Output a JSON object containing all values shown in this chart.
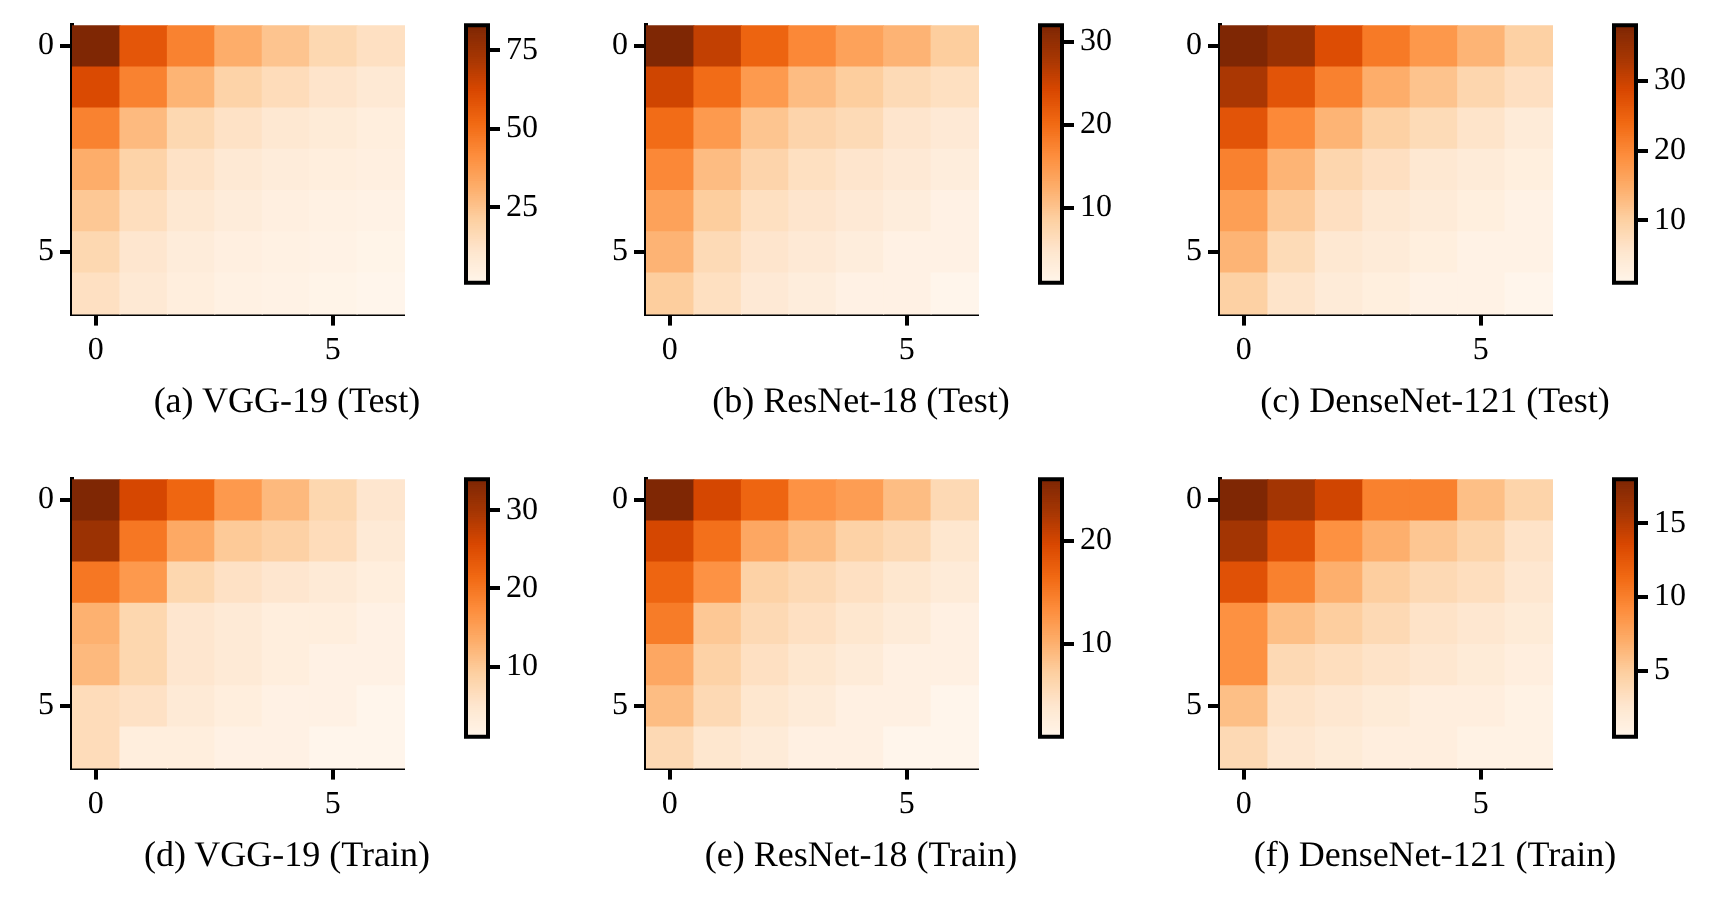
{
  "chart_data": [
    {
      "type": "heatmap",
      "title": "(a)  VGG-19 (Test)",
      "categories": [
        "0",
        null,
        null,
        null,
        null,
        "5",
        null
      ],
      "y_categories": [
        "0",
        null,
        null,
        null,
        null,
        "5",
        null
      ],
      "clim": [
        1,
        83
      ],
      "cticks": [
        25,
        50,
        75
      ],
      "cells": [
        [
          83,
          58,
          45,
          32,
          25,
          18,
          14
        ],
        [
          62,
          45,
          30,
          20,
          16,
          12,
          9
        ],
        [
          45,
          28,
          18,
          13,
          10,
          8,
          6
        ],
        [
          32,
          20,
          13,
          9,
          7,
          6,
          5
        ],
        [
          24,
          15,
          10,
          7,
          5,
          4,
          3
        ],
        [
          18,
          11,
          7,
          5,
          4,
          3,
          2
        ],
        [
          14,
          9,
          6,
          4,
          3,
          2,
          1
        ]
      ]
    },
    {
      "type": "heatmap",
      "title": "(b)  ResNet-18 (Test)",
      "categories": [
        "0",
        null,
        null,
        null,
        null,
        "5",
        null
      ],
      "y_categories": [
        "0",
        null,
        null,
        null,
        null,
        "5",
        null
      ],
      "clim": [
        1,
        32
      ],
      "cticks": [
        10,
        20,
        30
      ],
      "cells": [
        [
          32,
          26,
          21,
          17,
          14,
          12,
          9
        ],
        [
          25,
          20,
          15,
          11,
          9,
          7,
          6
        ],
        [
          20,
          15,
          10,
          8,
          7,
          5,
          4
        ],
        [
          17,
          11,
          8,
          6,
          5,
          4,
          3
        ],
        [
          14,
          9,
          6,
          5,
          4,
          3,
          2
        ],
        [
          12,
          7,
          5,
          4,
          3,
          2,
          2
        ],
        [
          9,
          6,
          4,
          3,
          2,
          2,
          1
        ]
      ]
    },
    {
      "type": "heatmap",
      "title": "(c)  DenseNet-121 (Test)",
      "categories": [
        "0",
        null,
        null,
        null,
        null,
        "5",
        null
      ],
      "y_categories": [
        "0",
        null,
        null,
        null,
        null,
        "5",
        null
      ],
      "clim": [
        1,
        38
      ],
      "cticks": [
        10,
        20,
        30
      ],
      "cells": [
        [
          38,
          35,
          28,
          22,
          18,
          14,
          10
        ],
        [
          33,
          27,
          21,
          15,
          12,
          9,
          7
        ],
        [
          27,
          20,
          14,
          10,
          8,
          6,
          4
        ],
        [
          21,
          14,
          9,
          7,
          5,
          4,
          3
        ],
        [
          17,
          11,
          7,
          5,
          4,
          3,
          2
        ],
        [
          14,
          8,
          5,
          4,
          3,
          2,
          2
        ],
        [
          10,
          6,
          4,
          3,
          2,
          2,
          1
        ]
      ]
    },
    {
      "type": "heatmap",
      "title": "(d)  VGG-19 (Train)",
      "categories": [
        "0",
        null,
        null,
        null,
        null,
        "5",
        null
      ],
      "y_categories": [
        "0",
        null,
        null,
        null,
        null,
        "5",
        null
      ],
      "clim": [
        1,
        34
      ],
      "cticks": [
        10,
        20,
        30
      ],
      "cells": [
        [
          34,
          26,
          22,
          16,
          12,
          8,
          5
        ],
        [
          31,
          20,
          14,
          10,
          9,
          7,
          4
        ],
        [
          20,
          16,
          8,
          6,
          5,
          4,
          3
        ],
        [
          13,
          8,
          5,
          4,
          3,
          3,
          2
        ],
        [
          12,
          8,
          5,
          4,
          3,
          2,
          2
        ],
        [
          7,
          6,
          4,
          3,
          2,
          2,
          1
        ],
        [
          7,
          3,
          3,
          2,
          2,
          1,
          1
        ]
      ]
    },
    {
      "type": "heatmap",
      "title": "(e)  ResNet-18 (Train)",
      "categories": [
        "0",
        null,
        null,
        null,
        null,
        "5",
        null
      ],
      "y_categories": [
        "0",
        null,
        null,
        null,
        null,
        "5",
        null
      ],
      "clim": [
        1,
        26
      ],
      "cticks": [
        10,
        20
      ],
      "cells": [
        [
          26,
          20,
          17,
          13,
          12,
          9,
          6
        ],
        [
          20,
          16,
          11,
          9,
          7,
          6,
          4
        ],
        [
          17,
          13,
          7,
          6,
          5,
          4,
          3
        ],
        [
          15,
          8,
          6,
          5,
          4,
          3,
          2
        ],
        [
          11,
          7,
          5,
          4,
          3,
          2,
          2
        ],
        [
          9,
          6,
          4,
          3,
          2,
          2,
          1
        ],
        [
          6,
          4,
          3,
          2,
          2,
          1,
          1
        ]
      ]
    },
    {
      "type": "heatmap",
      "title": "(f)  DenseNet-121 (Train)",
      "categories": [
        "0",
        null,
        null,
        null,
        null,
        "5",
        null
      ],
      "y_categories": [
        "0",
        null,
        null,
        null,
        null,
        "5",
        null
      ],
      "clim": [
        0.5,
        18
      ],
      "cticks": [
        5,
        10,
        15
      ],
      "cells": [
        [
          18,
          16,
          14,
          10,
          10,
          6,
          4.5
        ],
        [
          16,
          13,
          9,
          7,
          5.5,
          4.5,
          3
        ],
        [
          13,
          10,
          7,
          5,
          4,
          3.5,
          2.5
        ],
        [
          9,
          6,
          5,
          4,
          3,
          2.5,
          2
        ],
        [
          9,
          4,
          3.5,
          3,
          2.5,
          2,
          1.5
        ],
        [
          6,
          3,
          2.5,
          2,
          1.5,
          1.5,
          1
        ],
        [
          4,
          2.5,
          2,
          1.5,
          1.5,
          1,
          1
        ]
      ]
    }
  ]
}
